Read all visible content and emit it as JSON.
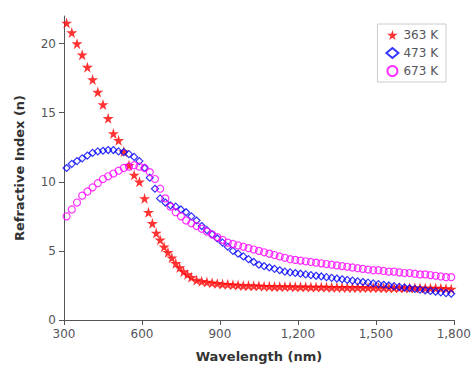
{
  "chart_data": {
    "type": "scatter",
    "xlabel": "Wavelength (nm)",
    "ylabel": "Refractive Index (n)",
    "xlim": [
      300,
      1800
    ],
    "xticks": [
      300,
      600,
      900,
      1200,
      1500,
      1800
    ],
    "ylim": [
      0,
      22
    ],
    "yticks": [
      0,
      5,
      10,
      15,
      20
    ],
    "grid": false,
    "legend": "upper right",
    "series": [
      {
        "name": "363 K",
        "color": "red",
        "marker": "star",
        "x": [
          310,
          330,
          350,
          370,
          390,
          410,
          430,
          450,
          470,
          490,
          510,
          530,
          550,
          570,
          590,
          610,
          625,
          640,
          655,
          670,
          685,
          700,
          715,
          730,
          745,
          760,
          775,
          790,
          810,
          830,
          850,
          870,
          890,
          910,
          930,
          950,
          970,
          990,
          1010,
          1030,
          1050,
          1070,
          1090,
          1110,
          1130,
          1150,
          1170,
          1190,
          1210,
          1230,
          1250,
          1270,
          1290,
          1310,
          1330,
          1350,
          1370,
          1390,
          1410,
          1430,
          1450,
          1470,
          1490,
          1510,
          1530,
          1550,
          1570,
          1590,
          1610,
          1630,
          1650,
          1670,
          1690,
          1710,
          1730,
          1750,
          1770,
          1790
        ],
        "values": [
          21.5,
          20.8,
          20.0,
          19.2,
          18.3,
          17.4,
          16.5,
          15.6,
          14.6,
          13.5,
          13.0,
          12.2,
          11.2,
          10.5,
          10.0,
          8.8,
          7.8,
          7.0,
          6.3,
          5.8,
          5.3,
          4.9,
          4.5,
          4.1,
          3.8,
          3.5,
          3.3,
          3.1,
          2.9,
          2.8,
          2.75,
          2.7,
          2.65,
          2.6,
          2.58,
          2.55,
          2.53,
          2.5,
          2.5,
          2.48,
          2.47,
          2.45,
          2.44,
          2.43,
          2.43,
          2.42,
          2.42,
          2.41,
          2.4,
          2.4,
          2.39,
          2.39,
          2.38,
          2.38,
          2.37,
          2.37,
          2.37,
          2.36,
          2.36,
          2.36,
          2.35,
          2.35,
          2.35,
          2.35,
          2.34,
          2.34,
          2.34,
          2.34,
          2.33,
          2.33,
          2.33,
          2.33,
          2.32,
          2.32,
          2.31,
          2.3,
          2.28,
          2.25
        ]
      },
      {
        "name": "473 K",
        "color": "blue",
        "marker": "diamond",
        "x": [
          310,
          330,
          350,
          370,
          390,
          410,
          430,
          450,
          470,
          490,
          510,
          530,
          550,
          570,
          590,
          610,
          630,
          650,
          670,
          690,
          710,
          730,
          750,
          770,
          790,
          810,
          830,
          850,
          870,
          890,
          910,
          930,
          950,
          970,
          990,
          1010,
          1030,
          1050,
          1070,
          1090,
          1110,
          1130,
          1150,
          1170,
          1190,
          1210,
          1230,
          1250,
          1270,
          1290,
          1310,
          1330,
          1350,
          1370,
          1390,
          1410,
          1430,
          1450,
          1470,
          1490,
          1510,
          1530,
          1550,
          1570,
          1590,
          1610,
          1630,
          1650,
          1670,
          1690,
          1710,
          1730,
          1750,
          1770,
          1790
        ],
        "values": [
          11.0,
          11.3,
          11.5,
          11.7,
          11.9,
          12.1,
          12.2,
          12.25,
          12.3,
          12.3,
          12.2,
          12.15,
          12.0,
          11.8,
          11.5,
          11.0,
          10.3,
          9.5,
          8.8,
          8.5,
          8.3,
          8.2,
          8.0,
          7.8,
          7.5,
          7.2,
          6.8,
          6.5,
          6.2,
          5.9,
          5.6,
          5.3,
          5.0,
          4.8,
          4.6,
          4.4,
          4.2,
          4.0,
          3.9,
          3.8,
          3.7,
          3.6,
          3.5,
          3.45,
          3.4,
          3.35,
          3.3,
          3.25,
          3.2,
          3.15,
          3.1,
          3.05,
          3.0,
          2.95,
          2.9,
          2.85,
          2.8,
          2.75,
          2.7,
          2.65,
          2.6,
          2.55,
          2.5,
          2.45,
          2.4,
          2.35,
          2.3,
          2.25,
          2.2,
          2.15,
          2.1,
          2.05,
          2.0,
          1.95,
          1.9
        ]
      },
      {
        "name": "673 K",
        "color": "magenta",
        "marker": "circle",
        "x": [
          310,
          330,
          350,
          370,
          390,
          410,
          430,
          450,
          470,
          490,
          510,
          530,
          550,
          570,
          590,
          610,
          630,
          650,
          670,
          690,
          710,
          730,
          750,
          770,
          790,
          810,
          830,
          850,
          870,
          890,
          910,
          930,
          950,
          970,
          990,
          1010,
          1030,
          1050,
          1070,
          1090,
          1110,
          1130,
          1150,
          1170,
          1190,
          1210,
          1230,
          1250,
          1270,
          1290,
          1310,
          1330,
          1350,
          1370,
          1390,
          1410,
          1430,
          1450,
          1470,
          1490,
          1510,
          1530,
          1550,
          1570,
          1590,
          1610,
          1630,
          1650,
          1670,
          1690,
          1710,
          1730,
          1750,
          1770,
          1790
        ],
        "values": [
          7.5,
          8.0,
          8.5,
          9.0,
          9.3,
          9.6,
          9.9,
          10.2,
          10.4,
          10.6,
          10.8,
          11.0,
          11.1,
          11.2,
          11.1,
          11.0,
          10.7,
          10.2,
          9.5,
          8.8,
          8.2,
          7.8,
          7.5,
          7.2,
          7.0,
          6.8,
          6.6,
          6.4,
          6.2,
          6.0,
          5.8,
          5.6,
          5.5,
          5.4,
          5.3,
          5.2,
          5.1,
          5.0,
          4.9,
          4.8,
          4.7,
          4.6,
          4.5,
          4.4,
          4.35,
          4.3,
          4.25,
          4.2,
          4.15,
          4.1,
          4.05,
          4.0,
          3.95,
          3.9,
          3.85,
          3.8,
          3.75,
          3.7,
          3.65,
          3.6,
          3.6,
          3.55,
          3.5,
          3.5,
          3.45,
          3.4,
          3.4,
          3.35,
          3.3,
          3.3,
          3.25,
          3.2,
          3.15,
          3.1,
          3.1
        ]
      }
    ]
  }
}
